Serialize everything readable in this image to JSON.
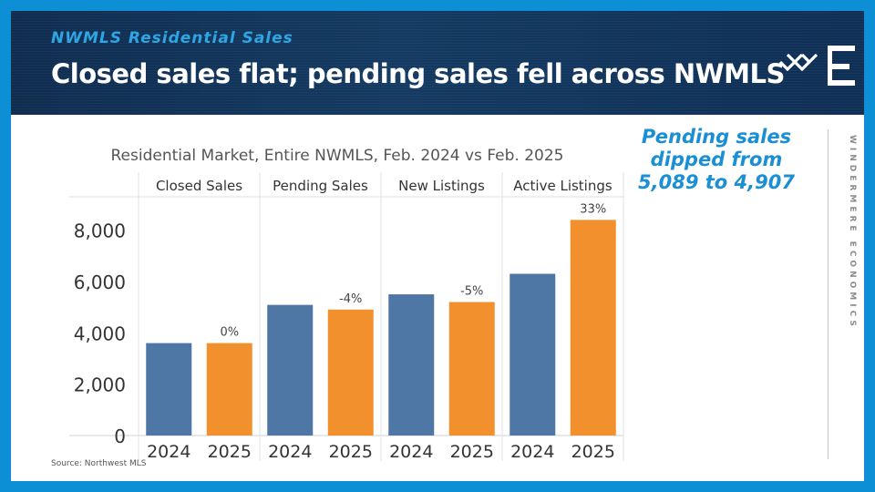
{
  "header": {
    "subtitle": "NWMLS Residential Sales",
    "headline": "Closed sales flat; pending sales fell across NWMLS"
  },
  "callout": {
    "line1": "Pending sales",
    "line2": "dipped from",
    "line3": "5,089 to 4,907"
  },
  "brand": {
    "vertical_text": "WINDERMERE ECONOMICS"
  },
  "source": "Source: Northwest MLS",
  "colors": {
    "series_2024": "#4e77a6",
    "series_2025": "#f2902e",
    "callout": "#1b8fd4"
  },
  "chart_data": {
    "type": "bar",
    "title": "Residential Market, Entire NWMLS, Feb. 2024 vs Feb. 2025",
    "categories": [
      "Closed Sales",
      "Pending Sales",
      "New Listings",
      "Active Listings"
    ],
    "x_labels": [
      "2024",
      "2025"
    ],
    "series": [
      {
        "name": "2024",
        "values": [
          3600,
          5089,
          5500,
          6300
        ]
      },
      {
        "name": "2025",
        "values": [
          3600,
          4907,
          5200,
          8400
        ]
      }
    ],
    "change_labels": [
      "0%",
      "-4%",
      "-5%",
      "33%"
    ],
    "yticks": [
      0,
      2000,
      4000,
      6000,
      8000
    ],
    "ytick_labels": [
      "0",
      "2,000",
      "4,000",
      "6,000",
      "8,000"
    ],
    "ylim": [
      0,
      9300
    ],
    "xlabel": "",
    "ylabel": "",
    "grid": false
  }
}
